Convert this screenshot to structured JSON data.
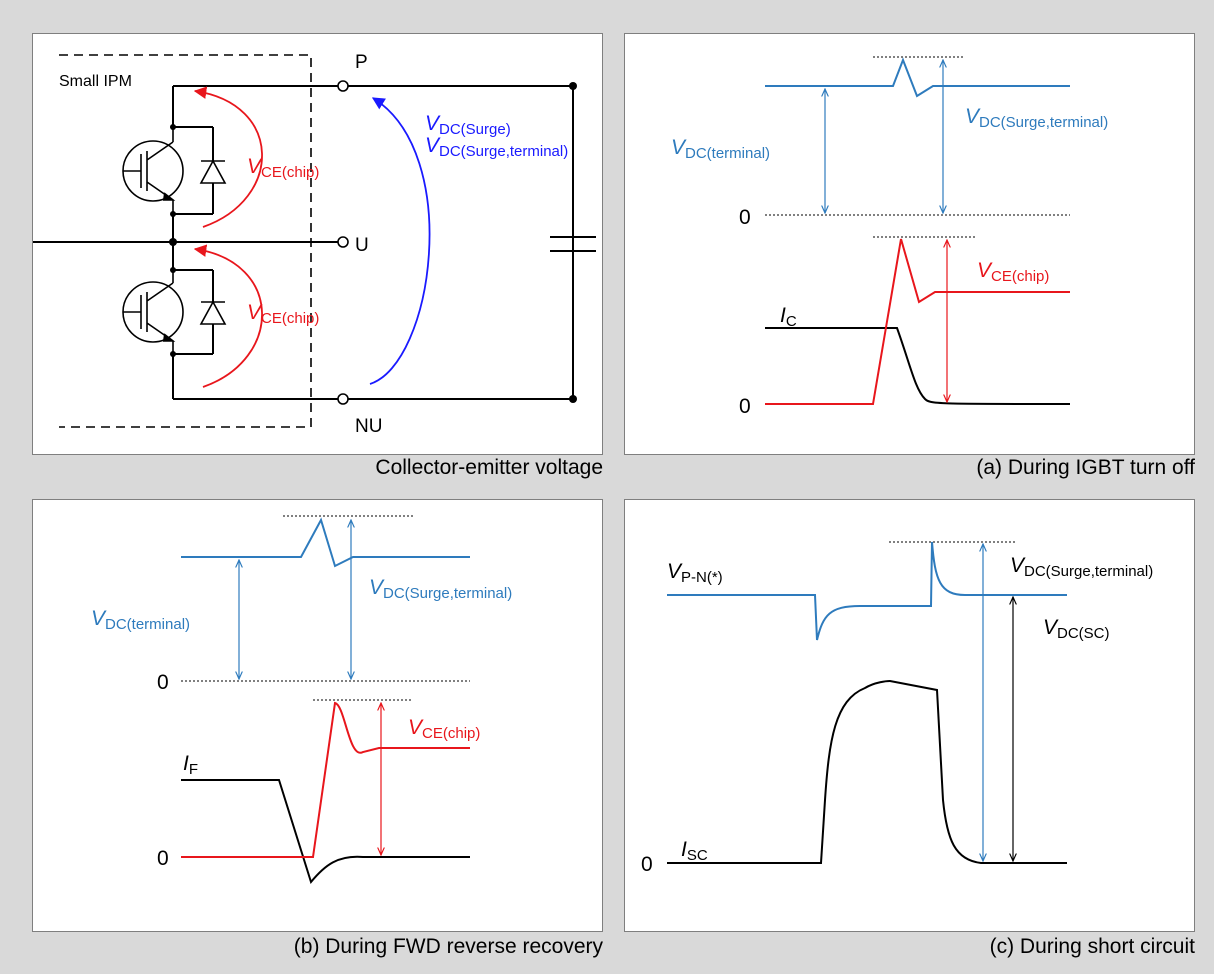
{
  "colors": {
    "blue_waveform": "#2e7bbd",
    "red_waveform": "#e8161c",
    "black": "#000000",
    "surge_arrow": "#1a1aff"
  },
  "circuit": {
    "caption": "Collector-emitter voltage",
    "module_label": "Small IPM",
    "terminals": {
      "p": "P",
      "u": "U",
      "nu": "NU"
    },
    "vce_label": {
      "v": "V",
      "sub": "CE(chip)"
    },
    "vdc_surge_label": {
      "v": "V",
      "sub": "DC(Surge)"
    },
    "vdc_surge_terminal_label": {
      "v": "V",
      "sub": "DC(Surge,terminal)"
    }
  },
  "panel_a": {
    "caption": "(a) During IGBT turn off",
    "vdc_terminal": {
      "v": "V",
      "sub": "DC(terminal)"
    },
    "vdc_surge_terminal": {
      "v": "V",
      "sub": "DC(Surge,terminal)"
    },
    "zero_top": "0",
    "vce_chip": {
      "v": "V",
      "sub": "CE(chip)"
    },
    "ic": {
      "v": "I",
      "sub": "C"
    },
    "zero_bottom": "0"
  },
  "panel_b": {
    "caption": "(b) During FWD reverse recovery",
    "vdc_terminal": {
      "v": "V",
      "sub": "DC(terminal)"
    },
    "vdc_surge_terminal": {
      "v": "V",
      "sub": "DC(Surge,terminal)"
    },
    "zero_top": "0",
    "vce_chip": {
      "v": "V",
      "sub": "CE(chip)"
    },
    "if": {
      "v": "I",
      "sub": "F"
    },
    "zero_bottom": "0"
  },
  "panel_c": {
    "caption": "(c) During short circuit",
    "vpn": {
      "v": "V",
      "sub": "P-N(*)"
    },
    "vdc_surge_terminal": {
      "v": "V",
      "sub": "DC(Surge,terminal)"
    },
    "vdc_sc": {
      "v": "V",
      "sub": "DC(SC)"
    },
    "isc": {
      "v": "I",
      "sub": "SC"
    },
    "zero": "0"
  }
}
